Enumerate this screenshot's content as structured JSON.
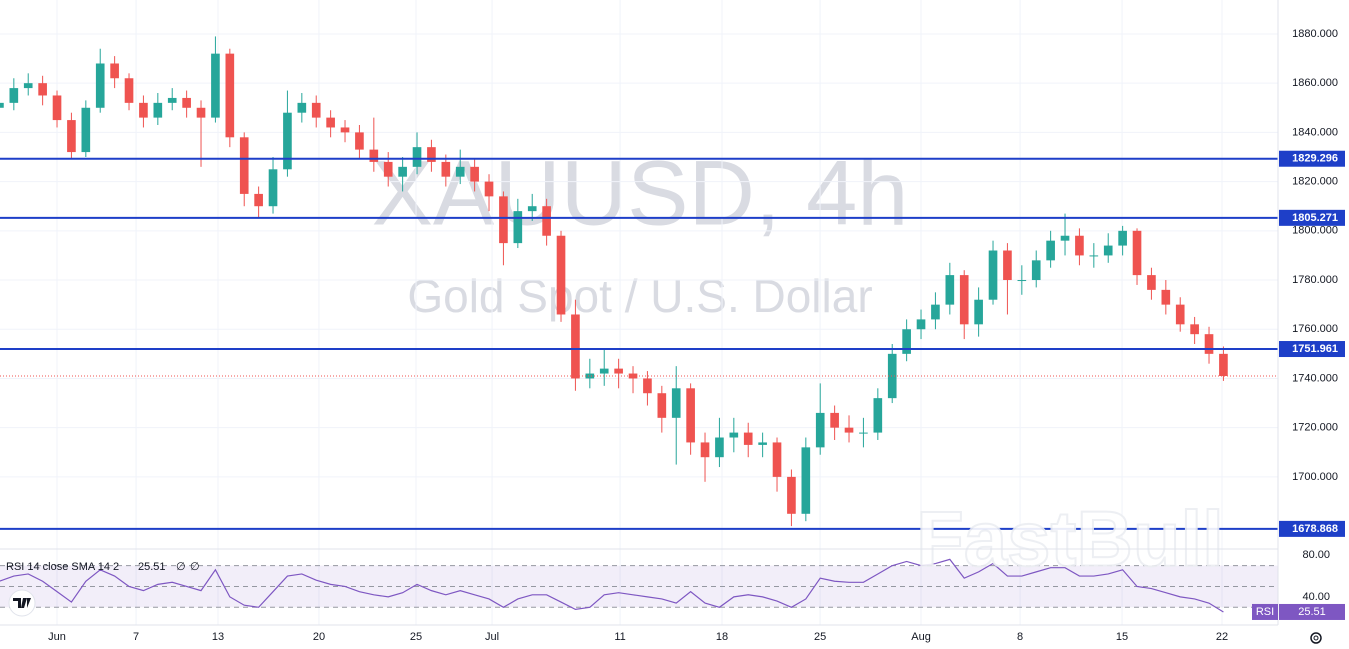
{
  "chart_data": [
    {
      "type": "candlestick",
      "watermark": "XAUUSD, 4h",
      "watermark_subtitle": "Gold Spot / U.S. Dollar",
      "brand": "FastBull",
      "up_color": "#26a69a",
      "down_color": "#ef5350",
      "level_color": "#1e3fc8",
      "grid": true,
      "xlim": [
        -3.96,
        84.79
      ],
      "xticks": [
        {
          "value": 0,
          "label": "Jun"
        },
        {
          "value": 5.49,
          "label": "7"
        },
        {
          "value": 11.18,
          "label": "13"
        },
        {
          "value": 18.19,
          "label": "20"
        },
        {
          "value": 24.93,
          "label": "25"
        },
        {
          "value": 30.21,
          "label": "Jul"
        },
        {
          "value": 39.1,
          "label": "11"
        },
        {
          "value": 46.18,
          "label": "18"
        },
        {
          "value": 52.99,
          "label": "25"
        },
        {
          "value": 60,
          "label": "Aug"
        },
        {
          "value": 66.88,
          "label": "8"
        },
        {
          "value": 73.96,
          "label": "15"
        },
        {
          "value": 80.9,
          "label": "22"
        }
      ],
      "ylim": [
        1671.1,
        1893.8
      ],
      "yticks": [
        {
          "value": 1700,
          "label": "1700.000"
        },
        {
          "value": 1720,
          "label": "1720.000"
        },
        {
          "value": 1740,
          "label": "1740.000"
        },
        {
          "value": 1760,
          "label": "1760.000"
        },
        {
          "value": 1780,
          "label": "1780.000"
        },
        {
          "value": 1800,
          "label": "1800.000"
        },
        {
          "value": 1820,
          "label": "1820.000"
        },
        {
          "value": 1840,
          "label": "1840.000"
        },
        {
          "value": 1860,
          "label": "1860.000"
        },
        {
          "value": 1880,
          "label": "1880.000"
        }
      ],
      "levels": [
        1829.296,
        1805.271,
        1751.961,
        1678.868
      ],
      "x": [
        -4,
        -3,
        -2,
        -1,
        0,
        1,
        2,
        3,
        4,
        5,
        6,
        7,
        8,
        9,
        10,
        11,
        12,
        13,
        14,
        15,
        16,
        17,
        18,
        19,
        20,
        21,
        22,
        23,
        24,
        25,
        26,
        27,
        28,
        29,
        30,
        31,
        32,
        33,
        34,
        35,
        36,
        37,
        38,
        39,
        40,
        41,
        42,
        43,
        44,
        45,
        46,
        47,
        48,
        49,
        50,
        51,
        52,
        53,
        54,
        55,
        56,
        57,
        58,
        59,
        60,
        61,
        62,
        63,
        64,
        65,
        66,
        67,
        68,
        69,
        70,
        71,
        72,
        73,
        74,
        75,
        76,
        77,
        78,
        79,
        80,
        81
      ],
      "open": [
        1850,
        1852,
        1858,
        1860,
        1855,
        1845,
        1832,
        1850,
        1868,
        1862,
        1852,
        1846,
        1852,
        1854,
        1850,
        1846,
        1872,
        1838,
        1815,
        1810,
        1825,
        1848,
        1852,
        1846,
        1842,
        1840,
        1833,
        1828,
        1822,
        1826,
        1834,
        1828,
        1822,
        1826,
        1820,
        1814,
        1795,
        1808,
        1810,
        1798,
        1766,
        1740,
        1742,
        1744,
        1742,
        1740,
        1734,
        1724,
        1736,
        1714,
        1708,
        1716,
        1718,
        1713,
        1714,
        1700,
        1685,
        1712,
        1726,
        1720,
        1718,
        1718,
        1732,
        1750,
        1760,
        1764,
        1770,
        1782,
        1762,
        1772,
        1792,
        1780,
        1780,
        1788,
        1796,
        1798,
        1790,
        1790,
        1794,
        1800,
        1782,
        1776,
        1770,
        1762,
        1758,
        1750
      ],
      "high": [
        1856,
        1862,
        1864,
        1863,
        1857,
        1848,
        1853,
        1874,
        1871,
        1864,
        1855,
        1856,
        1858,
        1857,
        1853,
        1879,
        1874,
        1840,
        1818,
        1830,
        1857,
        1856,
        1855,
        1849,
        1845,
        1843,
        1846,
        1832,
        1830,
        1840,
        1837,
        1831,
        1833,
        1829,
        1823,
        1816,
        1813,
        1815,
        1813,
        1800,
        1772,
        1748,
        1752,
        1748,
        1745,
        1743,
        1737,
        1745,
        1738,
        1718,
        1724,
        1724,
        1722,
        1718,
        1716,
        1703,
        1716,
        1738,
        1729,
        1725,
        1724,
        1736,
        1754,
        1764,
        1768,
        1775,
        1787,
        1784,
        1777,
        1796,
        1795,
        1786,
        1792,
        1800,
        1807,
        1801,
        1795,
        1799,
        1802,
        1801,
        1785,
        1780,
        1773,
        1765,
        1761,
        1753
      ],
      "low": [
        1847,
        1849,
        1855,
        1851,
        1842,
        1829,
        1830,
        1848,
        1858,
        1849,
        1842,
        1843,
        1849,
        1846,
        1826,
        1844,
        1834,
        1810,
        1805,
        1807,
        1822,
        1844,
        1842,
        1838,
        1836,
        1829,
        1824,
        1818,
        1816,
        1823,
        1824,
        1818,
        1819,
        1816,
        1808,
        1786,
        1793,
        1804,
        1794,
        1763,
        1735,
        1736,
        1737,
        1736,
        1734,
        1729,
        1718,
        1705,
        1709,
        1698,
        1704,
        1710,
        1708,
        1708,
        1694,
        1680,
        1682,
        1709,
        1715,
        1714,
        1712,
        1715,
        1730,
        1747,
        1756,
        1760,
        1766,
        1756,
        1757,
        1770,
        1766,
        1774,
        1777,
        1785,
        1790,
        1786,
        1785,
        1787,
        1790,
        1778,
        1772,
        1766,
        1759,
        1754,
        1746,
        1739
      ],
      "close": [
        1852,
        1858,
        1860,
        1855,
        1845,
        1832,
        1850,
        1868,
        1862,
        1852,
        1846,
        1852,
        1854,
        1850,
        1846,
        1872,
        1838,
        1815,
        1810,
        1825,
        1848,
        1852,
        1846,
        1842,
        1840,
        1833,
        1828,
        1822,
        1826,
        1834,
        1828,
        1822,
        1826,
        1820,
        1814,
        1795,
        1808,
        1810,
        1798,
        1766,
        1740,
        1742,
        1744,
        1742,
        1740,
        1734,
        1724,
        1736,
        1714,
        1708,
        1716,
        1718,
        1713,
        1714,
        1700,
        1685,
        1712,
        1726,
        1720,
        1718,
        1718,
        1732,
        1750,
        1760,
        1764,
        1770,
        1782,
        1762,
        1772,
        1792,
        1780,
        1780,
        1788,
        1796,
        1798,
        1790,
        1790,
        1794,
        1800,
        1782,
        1776,
        1770,
        1762,
        1758,
        1750,
        1741
      ]
    },
    {
      "type": "line",
      "title": "RSI 14 close SMA 14 2",
      "status_icons": [
        "∅",
        "∅"
      ],
      "name": "RSI",
      "color": "#7e57c2",
      "ylim": [
        13,
        85
      ],
      "yticks": [
        {
          "value": 40,
          "label": "40.00"
        },
        {
          "value": 80,
          "label": "80.00"
        }
      ],
      "levels": [
        70,
        50,
        30
      ],
      "values": [
        55,
        60,
        62,
        55,
        45,
        35,
        55,
        66,
        60,
        50,
        46,
        52,
        54,
        50,
        46,
        66,
        40,
        32,
        30,
        45,
        60,
        62,
        56,
        52,
        50,
        45,
        42,
        40,
        44,
        52,
        46,
        42,
        46,
        42,
        38,
        30,
        38,
        42,
        42,
        35,
        28,
        30,
        42,
        44,
        42,
        40,
        38,
        34,
        45,
        34,
        30,
        40,
        42,
        40,
        36,
        30,
        38,
        58,
        55,
        54,
        54,
        62,
        70,
        74,
        70,
        72,
        76,
        58,
        64,
        72,
        60,
        60,
        64,
        68,
        68,
        60,
        60,
        62,
        66,
        50,
        48,
        44,
        40,
        38,
        34,
        25.51
      ]
    }
  ]
}
